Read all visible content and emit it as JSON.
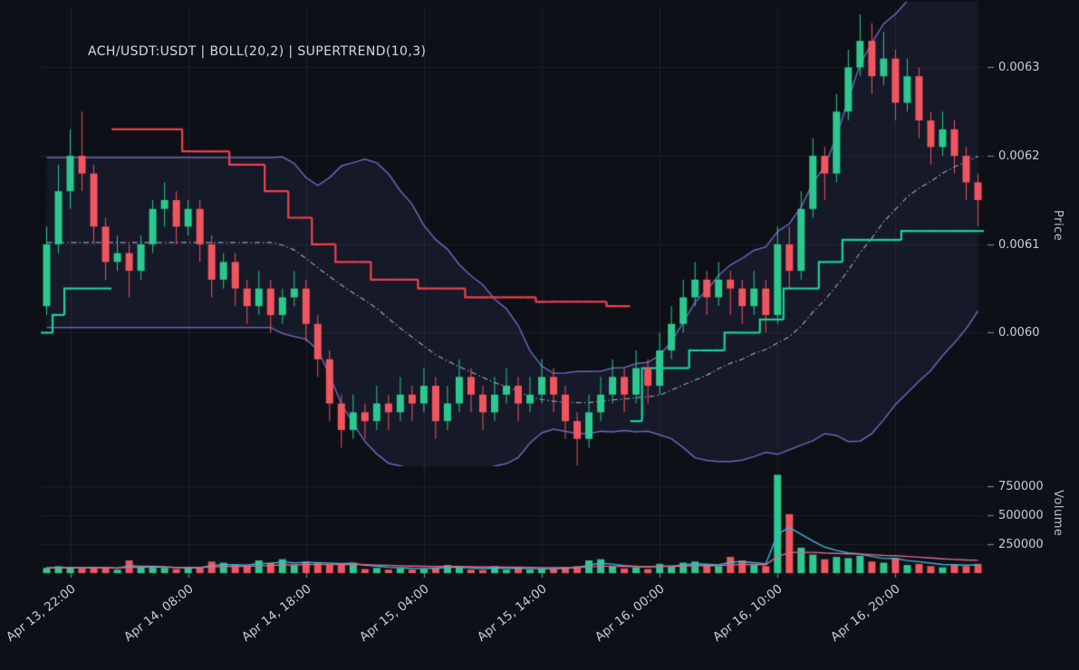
{
  "colors": {
    "background": "#0d1117",
    "grid": "rgba(125,140,180,0.13)",
    "axis_text": "#c7ccda",
    "tick_mark": "#7a8290",
    "candle_up": "#2bc98f",
    "candle_down": "#f1555f",
    "boll_line": "#6a66b8",
    "boll_fill": "rgba(106,102,184,0.10)",
    "boll_basis": "#9aa0ac",
    "supertrend_up": "#12d6a2",
    "supertrend_down": "#f4404f",
    "volume_ma_fast": "#38b9d8",
    "volume_ma_slow": "#e0688f"
  },
  "chart_data": {
    "type": "candlestick",
    "title": "ACH/USDT:USDT | BOLL(20,2) | SUPERTREND(10,3)",
    "symbol": "ACH/USDT:USDT",
    "indicators": [
      "BOLL(20,2)",
      "SUPERTREND(10,3)"
    ],
    "ylabel_price": "Price",
    "ylabel_volume": "Volume",
    "ylim_price": [
      0.00585,
      0.006368
    ],
    "ylim_volume": [
      0,
      900000
    ],
    "price_ticks": {
      "values": [
        0.006,
        0.0061,
        0.0062,
        0.0063
      ],
      "labels": [
        "0.0060",
        "0.0061",
        "0.0062",
        "0.0063"
      ]
    },
    "volume_ticks": {
      "values": [
        250000,
        500000,
        750000
      ],
      "labels": [
        "250000",
        "500000",
        "750000"
      ]
    },
    "x_ticks": {
      "indices": [
        2,
        12,
        22,
        32,
        42,
        52,
        62,
        72
      ],
      "labels": [
        "Apr 13, 22:00",
        "Apr 14, 08:00",
        "Apr 14, 18:00",
        "Apr 15, 04:00",
        "Apr 15, 14:00",
        "Apr 16, 00:00",
        "Apr 16, 10:00",
        "Apr 16, 20:00"
      ]
    },
    "columns": [
      "open",
      "high",
      "low",
      "close",
      "volume"
    ],
    "candles": [
      [
        0.00603,
        0.00612,
        0.00602,
        0.0061,
        45000
      ],
      [
        0.0061,
        0.00619,
        0.00609,
        0.00616,
        60000
      ],
      [
        0.00616,
        0.00623,
        0.00614,
        0.0062,
        50000
      ],
      [
        0.0062,
        0.00625,
        0.00616,
        0.00618,
        40000
      ],
      [
        0.00618,
        0.00619,
        0.0061,
        0.00612,
        55000
      ],
      [
        0.00612,
        0.00613,
        0.00606,
        0.00608,
        45000
      ],
      [
        0.00608,
        0.00611,
        0.00607,
        0.00609,
        30000
      ],
      [
        0.00609,
        0.0061,
        0.00604,
        0.00607,
        110000
      ],
      [
        0.00607,
        0.00611,
        0.00606,
        0.0061,
        50000
      ],
      [
        0.0061,
        0.00615,
        0.00609,
        0.00614,
        60000
      ],
      [
        0.00614,
        0.00617,
        0.00612,
        0.00615,
        45000
      ],
      [
        0.00615,
        0.00616,
        0.0061,
        0.00612,
        35000
      ],
      [
        0.00612,
        0.00615,
        0.00611,
        0.00614,
        40000
      ],
      [
        0.00614,
        0.00615,
        0.00608,
        0.0061,
        50000
      ],
      [
        0.0061,
        0.00611,
        0.00604,
        0.00606,
        100000
      ],
      [
        0.00606,
        0.00609,
        0.00605,
        0.00608,
        90000
      ],
      [
        0.00608,
        0.00609,
        0.00603,
        0.00605,
        70000
      ],
      [
        0.00605,
        0.00606,
        0.00601,
        0.00603,
        60000
      ],
      [
        0.00603,
        0.00607,
        0.00602,
        0.00605,
        110000
      ],
      [
        0.00605,
        0.00606,
        0.006,
        0.00602,
        90000
      ],
      [
        0.00602,
        0.00605,
        0.00601,
        0.00604,
        120000
      ],
      [
        0.00604,
        0.00607,
        0.00603,
        0.00605,
        70000
      ],
      [
        0.00605,
        0.00606,
        0.00599,
        0.00601,
        100000
      ],
      [
        0.00601,
        0.00602,
        0.00595,
        0.00597,
        90000
      ],
      [
        0.00597,
        0.00598,
        0.0059,
        0.00592,
        80000
      ],
      [
        0.00592,
        0.00593,
        0.00587,
        0.00589,
        70000
      ],
      [
        0.00589,
        0.00593,
        0.00588,
        0.00591,
        90000
      ],
      [
        0.00591,
        0.00592,
        0.00588,
        0.0059,
        35000
      ],
      [
        0.0059,
        0.00594,
        0.00589,
        0.00592,
        45000
      ],
      [
        0.00592,
        0.00593,
        0.00589,
        0.00591,
        30000
      ],
      [
        0.00591,
        0.00595,
        0.0059,
        0.00593,
        40000
      ],
      [
        0.00593,
        0.00594,
        0.0059,
        0.00592,
        30000
      ],
      [
        0.00592,
        0.00596,
        0.00591,
        0.00594,
        35000
      ],
      [
        0.00594,
        0.00595,
        0.00588,
        0.0059,
        45000
      ],
      [
        0.0059,
        0.00594,
        0.00589,
        0.00592,
        70000
      ],
      [
        0.00592,
        0.00597,
        0.00591,
        0.00595,
        50000
      ],
      [
        0.00595,
        0.00596,
        0.00591,
        0.00593,
        30000
      ],
      [
        0.00593,
        0.00594,
        0.00589,
        0.00591,
        25000
      ],
      [
        0.00591,
        0.00595,
        0.0059,
        0.00593,
        60000
      ],
      [
        0.00593,
        0.00596,
        0.00592,
        0.00594,
        30000
      ],
      [
        0.00594,
        0.00595,
        0.0059,
        0.00592,
        45000
      ],
      [
        0.00592,
        0.00595,
        0.00591,
        0.00593,
        30000
      ],
      [
        0.00593,
        0.00597,
        0.00592,
        0.00595,
        40000
      ],
      [
        0.00595,
        0.00596,
        0.00591,
        0.00593,
        35000
      ],
      [
        0.00593,
        0.00594,
        0.00588,
        0.0059,
        50000
      ],
      [
        0.0059,
        0.00591,
        0.00585,
        0.00588,
        60000
      ],
      [
        0.00588,
        0.00593,
        0.00587,
        0.00591,
        110000
      ],
      [
        0.00591,
        0.00595,
        0.0059,
        0.00593,
        120000
      ],
      [
        0.00593,
        0.00597,
        0.00592,
        0.00595,
        60000
      ],
      [
        0.00595,
        0.00596,
        0.00591,
        0.00593,
        40000
      ],
      [
        0.00593,
        0.00598,
        0.00592,
        0.00596,
        50000
      ],
      [
        0.00596,
        0.00597,
        0.00592,
        0.00594,
        35000
      ],
      [
        0.00594,
        0.006,
        0.00593,
        0.00598,
        80000
      ],
      [
        0.00598,
        0.00603,
        0.00597,
        0.00601,
        60000
      ],
      [
        0.00601,
        0.00606,
        0.006,
        0.00604,
        90000
      ],
      [
        0.00604,
        0.00608,
        0.00603,
        0.00606,
        100000
      ],
      [
        0.00606,
        0.00607,
        0.00602,
        0.00604,
        70000
      ],
      [
        0.00604,
        0.00608,
        0.00603,
        0.00606,
        60000
      ],
      [
        0.00606,
        0.00607,
        0.00602,
        0.00605,
        140000
      ],
      [
        0.00605,
        0.00606,
        0.00601,
        0.00603,
        110000
      ],
      [
        0.00603,
        0.00607,
        0.00602,
        0.00605,
        70000
      ],
      [
        0.00605,
        0.00606,
        0.006,
        0.00602,
        60000
      ],
      [
        0.00602,
        0.00612,
        0.00601,
        0.0061,
        850000
      ],
      [
        0.0061,
        0.00612,
        0.00605,
        0.00607,
        510000
      ],
      [
        0.00607,
        0.00616,
        0.00606,
        0.00614,
        220000
      ],
      [
        0.00614,
        0.00622,
        0.00613,
        0.0062,
        160000
      ],
      [
        0.0062,
        0.00621,
        0.00615,
        0.00618,
        120000
      ],
      [
        0.00618,
        0.00627,
        0.00617,
        0.00625,
        140000
      ],
      [
        0.00625,
        0.00632,
        0.00624,
        0.0063,
        130000
      ],
      [
        0.0063,
        0.00636,
        0.00629,
        0.00633,
        150000
      ],
      [
        0.00633,
        0.00635,
        0.00627,
        0.00629,
        100000
      ],
      [
        0.00629,
        0.00634,
        0.00628,
        0.00631,
        90000
      ],
      [
        0.00631,
        0.00632,
        0.00624,
        0.00626,
        130000
      ],
      [
        0.00626,
        0.00631,
        0.00625,
        0.00629,
        70000
      ],
      [
        0.00629,
        0.0063,
        0.00622,
        0.00624,
        80000
      ],
      [
        0.00624,
        0.00625,
        0.00619,
        0.00621,
        60000
      ],
      [
        0.00621,
        0.00625,
        0.0062,
        0.00623,
        50000
      ],
      [
        0.00623,
        0.00624,
        0.00618,
        0.0062,
        70000
      ],
      [
        0.0062,
        0.00621,
        0.00615,
        0.00617,
        60000
      ],
      [
        0.00617,
        0.00618,
        0.00612,
        0.00615,
        80000
      ]
    ],
    "supertrend": [
      [
        0.006,
        "u"
      ],
      [
        0.00602,
        "u"
      ],
      [
        0.00605,
        "u"
      ],
      [
        0.00605,
        "u"
      ],
      [
        0.00605,
        "u"
      ],
      [
        0.00605,
        "u"
      ],
      [
        0.00623,
        "d"
      ],
      [
        0.00623,
        "d"
      ],
      [
        0.00623,
        "d"
      ],
      [
        0.00623,
        "d"
      ],
      [
        0.00623,
        "d"
      ],
      [
        0.00623,
        "d"
      ],
      [
        0.006205,
        "d"
      ],
      [
        0.006205,
        "d"
      ],
      [
        0.006205,
        "d"
      ],
      [
        0.006205,
        "d"
      ],
      [
        0.00619,
        "d"
      ],
      [
        0.00619,
        "d"
      ],
      [
        0.00619,
        "d"
      ],
      [
        0.00616,
        "d"
      ],
      [
        0.00616,
        "d"
      ],
      [
        0.00613,
        "d"
      ],
      [
        0.00613,
        "d"
      ],
      [
        0.0061,
        "d"
      ],
      [
        0.0061,
        "d"
      ],
      [
        0.00608,
        "d"
      ],
      [
        0.00608,
        "d"
      ],
      [
        0.00608,
        "d"
      ],
      [
        0.00606,
        "d"
      ],
      [
        0.00606,
        "d"
      ],
      [
        0.00606,
        "d"
      ],
      [
        0.00606,
        "d"
      ],
      [
        0.00605,
        "d"
      ],
      [
        0.00605,
        "d"
      ],
      [
        0.00605,
        "d"
      ],
      [
        0.00605,
        "d"
      ],
      [
        0.00604,
        "d"
      ],
      [
        0.00604,
        "d"
      ],
      [
        0.00604,
        "d"
      ],
      [
        0.00604,
        "d"
      ],
      [
        0.00604,
        "d"
      ],
      [
        0.00604,
        "d"
      ],
      [
        0.006035,
        "d"
      ],
      [
        0.006035,
        "d"
      ],
      [
        0.006035,
        "d"
      ],
      [
        0.006035,
        "d"
      ],
      [
        0.006035,
        "d"
      ],
      [
        0.006035,
        "d"
      ],
      [
        0.00603,
        "d"
      ],
      [
        0.00603,
        "d"
      ],
      [
        0.0059,
        "u"
      ],
      [
        0.00596,
        "u"
      ],
      [
        0.00596,
        "u"
      ],
      [
        0.00596,
        "u"
      ],
      [
        0.00596,
        "u"
      ],
      [
        0.00598,
        "u"
      ],
      [
        0.00598,
        "u"
      ],
      [
        0.00598,
        "u"
      ],
      [
        0.006,
        "u"
      ],
      [
        0.006,
        "u"
      ],
      [
        0.006,
        "u"
      ],
      [
        0.006015,
        "u"
      ],
      [
        0.006015,
        "u"
      ],
      [
        0.00605,
        "u"
      ],
      [
        0.00605,
        "u"
      ],
      [
        0.00605,
        "u"
      ],
      [
        0.00608,
        "u"
      ],
      [
        0.00608,
        "u"
      ],
      [
        0.006105,
        "u"
      ],
      [
        0.006105,
        "u"
      ],
      [
        0.006105,
        "u"
      ],
      [
        0.006105,
        "u"
      ],
      [
        0.006105,
        "u"
      ],
      [
        0.006115,
        "u"
      ],
      [
        0.006115,
        "u"
      ],
      [
        0.006115,
        "u"
      ],
      [
        0.006115,
        "u"
      ],
      [
        0.006115,
        "u"
      ],
      [
        0.006115,
        "u"
      ],
      [
        0.006115,
        "u"
      ]
    ],
    "bollinger": {
      "period": 20,
      "stddev": 2,
      "computed_from": "close"
    },
    "volume_ma_periods": [
      5,
      21
    ]
  }
}
